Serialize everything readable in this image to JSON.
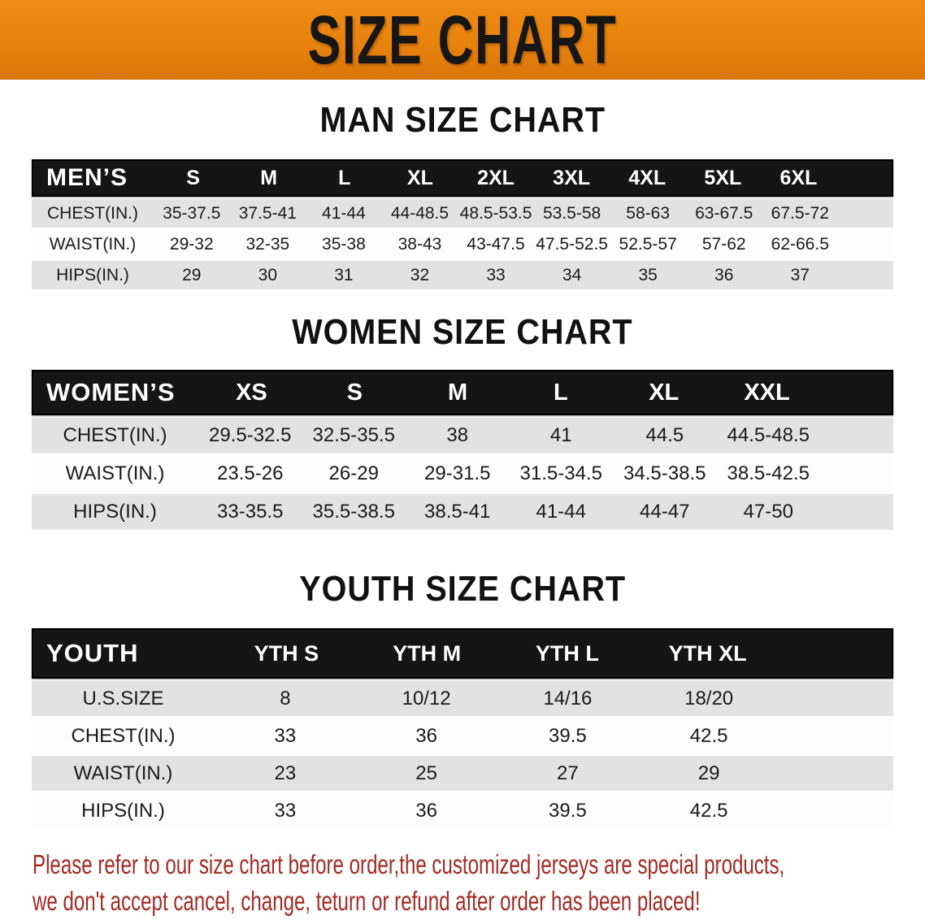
{
  "colors": {
    "banner_orange": "#E8820E",
    "header_black": "#151515",
    "row_shade": "#E2E2E2",
    "row_plain": "#FDFDFD",
    "footer_red": "#A42A22",
    "heading_black": "#111111"
  },
  "banner": {
    "title": "SIZE CHART"
  },
  "sections": [
    {
      "heading": "MAN SIZE CHART",
      "table": {
        "corner_label": "MEN’S",
        "columns": [
          "S",
          "M",
          "L",
          "XL",
          "2XL",
          "3XL",
          "4XL",
          "5XL",
          "6XL"
        ],
        "rows": [
          {
            "label": "CHEST(IN.)",
            "values": [
              "35-37.5",
              "37.5-41",
              "41-44",
              "44-48.5",
              "48.5-53.5",
              "53.5-58",
              "58-63",
              "63-67.5",
              "67.5-72"
            ]
          },
          {
            "label": "WAIST(IN.)",
            "values": [
              "29-32",
              "32-35",
              "35-38",
              "38-43",
              "43-47.5",
              "47.5-52.5",
              "52.5-57",
              "57-62",
              "62-66.5"
            ]
          },
          {
            "label": "HIPS(IN.)",
            "values": [
              "29",
              "30",
              "31",
              "32",
              "33",
              "34",
              "35",
              "36",
              "37"
            ]
          }
        ]
      }
    },
    {
      "heading": "WOMEN SIZE CHART",
      "table": {
        "corner_label": "WOMEN’S",
        "columns": [
          "XS",
          "S",
          "M",
          "L",
          "XL",
          "XXL"
        ],
        "rows": [
          {
            "label": "CHEST(IN.)",
            "values": [
              "29.5-32.5",
              "32.5-35.5",
              "38",
              "41",
              "44.5",
              "44.5-48.5"
            ]
          },
          {
            "label": "WAIST(IN.)",
            "values": [
              "23.5-26",
              "26-29",
              "29-31.5",
              "31.5-34.5",
              "34.5-38.5",
              "38.5-42.5"
            ]
          },
          {
            "label": "HIPS(IN.)",
            "values": [
              "33-35.5",
              "35.5-38.5",
              "38.5-41",
              "41-44",
              "44-47",
              "47-50"
            ]
          }
        ]
      }
    },
    {
      "heading": "YOUTH SIZE CHART",
      "table": {
        "corner_label": "YOUTH",
        "columns": [
          "YTH S",
          "YTH M",
          "YTH L",
          "YTH XL"
        ],
        "rows": [
          {
            "label": "U.S.SIZE",
            "values": [
              "8",
              "10/12",
              "14/16",
              "18/20"
            ]
          },
          {
            "label": "CHEST(IN.)",
            "values": [
              "33",
              "36",
              "39.5",
              "42.5"
            ]
          },
          {
            "label": "WAIST(IN.)",
            "values": [
              "23",
              "25",
              "27",
              "29"
            ]
          },
          {
            "label": "HIPS(IN.)",
            "values": [
              "33",
              "36",
              "39.5",
              "42.5"
            ]
          }
        ]
      }
    }
  ],
  "footer": {
    "line1": "Please refer to our size chart before order,the customized jerseys are special products,",
    "line2": "we don't accept cancel, change, teturn or refund after order has been placed!"
  }
}
